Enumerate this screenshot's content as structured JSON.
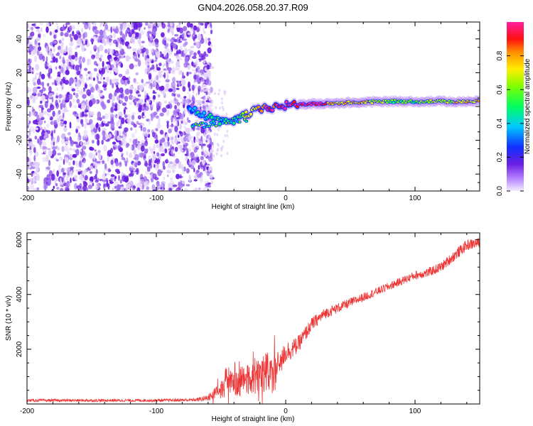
{
  "figure_title": "GN04.2026.058.20.37.R09",
  "colors": {
    "snr_line": "#ee3333",
    "axis": "#000000",
    "noise_dark": "#6a1de0",
    "noise_light": "#e2d2f8"
  },
  "chart_data": [
    {
      "id": "spectrogram",
      "type": "heatmap",
      "title": "",
      "xlabel": "Height of straight line (km)",
      "ylabel": "Frequency (Hz)",
      "xlim": [
        -200,
        150
      ],
      "ylim": [
        -50,
        50
      ],
      "x_ticks": [
        -200,
        -100,
        0,
        100
      ],
      "y_ticks": [
        -40,
        -20,
        0,
        20,
        40
      ],
      "colorbar": {
        "label": "Normalized spectral amplitude",
        "range": [
          0,
          1
        ],
        "ticks": [
          0.0,
          0.2,
          0.4,
          0.6,
          0.8
        ],
        "tick_labels": [
          "0.0",
          "0.2",
          "0.4",
          "0.6",
          "0.8"
        ]
      },
      "noise_region_x": [
        -200,
        -60
      ],
      "signal_track": {
        "x": [
          -75,
          -65,
          -55,
          -45,
          -35,
          -25,
          -15,
          -5,
          5,
          15,
          25,
          40,
          60,
          80,
          100,
          120,
          150
        ],
        "freq": [
          -2,
          -4,
          -8,
          -10,
          -6,
          -3,
          -1,
          0,
          1,
          1.5,
          1.5,
          2,
          2.5,
          3,
          3,
          3,
          3
        ],
        "amplitude": [
          0.3,
          0.35,
          0.4,
          0.45,
          0.55,
          0.7,
          0.85,
          0.9,
          0.92,
          0.95,
          0.9,
          0.7,
          0.75,
          0.5,
          0.55,
          0.6,
          0.75
        ]
      }
    },
    {
      "id": "snr",
      "type": "line",
      "title": "",
      "xlabel": "Height of straight line (km)",
      "ylabel": "SNR (10 * v/v)",
      "xlim": [
        -200,
        150
      ],
      "ylim": [
        0,
        6250
      ],
      "x_ticks": [
        -200,
        -100,
        0,
        100
      ],
      "y_ticks": [
        2000,
        4000,
        6000
      ],
      "series": [
        {
          "name": "SNR",
          "x": [
            -200,
            -150,
            -100,
            -70,
            -60,
            -50,
            -45,
            -40,
            -35,
            -30,
            -25,
            -20,
            -15,
            -10,
            -5,
            0,
            5,
            10,
            20,
            30,
            40,
            50,
            60,
            70,
            80,
            90,
            100,
            110,
            120,
            130,
            140,
            150
          ],
          "mean": [
            130,
            130,
            130,
            150,
            220,
            600,
            1000,
            700,
            800,
            900,
            1000,
            1100,
            1200,
            1000,
            1500,
            1900,
            2000,
            2200,
            2900,
            3300,
            3500,
            3700,
            3900,
            4100,
            4300,
            4500,
            4700,
            4800,
            5000,
            5400,
            5800,
            5900
          ],
          "jitter": [
            50,
            50,
            50,
            60,
            120,
            350,
            450,
            450,
            550,
            650,
            650,
            700,
            750,
            650,
            500,
            400,
            350,
            300,
            250,
            200,
            180,
            170,
            160,
            150,
            150,
            150,
            160,
            170,
            180,
            200,
            200,
            180
          ]
        }
      ]
    }
  ]
}
